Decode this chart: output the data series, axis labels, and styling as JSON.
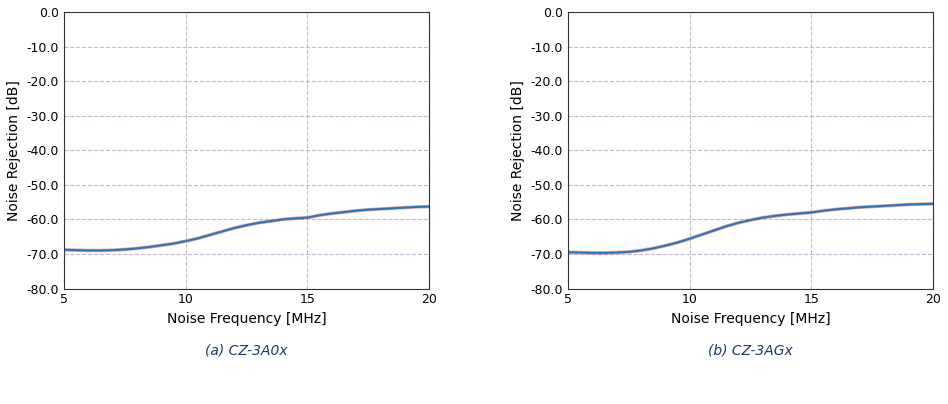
{
  "subplot_a": {
    "x": [
      5,
      5.5,
      6,
      6.5,
      7,
      7.5,
      8,
      8.5,
      9,
      9.5,
      10,
      10.5,
      11,
      11.5,
      12,
      12.5,
      13,
      13.5,
      14,
      14.5,
      15,
      15.5,
      16,
      16.5,
      17,
      17.5,
      18,
      18.5,
      19,
      19.5,
      20
    ],
    "y": [
      -68.8,
      -68.9,
      -69.0,
      -69.0,
      -68.9,
      -68.7,
      -68.4,
      -68.0,
      -67.5,
      -67.0,
      -66.3,
      -65.5,
      -64.5,
      -63.5,
      -62.5,
      -61.7,
      -61.0,
      -60.5,
      -60.0,
      -59.7,
      -59.5,
      -58.8,
      -58.3,
      -57.9,
      -57.5,
      -57.2,
      -57.0,
      -56.8,
      -56.6,
      -56.4,
      -56.3
    ],
    "label": "(a) CZ-3A0x"
  },
  "subplot_b": {
    "x": [
      5,
      5.5,
      6,
      6.5,
      7,
      7.5,
      8,
      8.5,
      9,
      9.5,
      10,
      10.5,
      11,
      11.5,
      12,
      12.5,
      13,
      13.5,
      14,
      14.5,
      15,
      15.5,
      16,
      16.5,
      17,
      17.5,
      18,
      18.5,
      19,
      19.5,
      20
    ],
    "y": [
      -69.5,
      -69.6,
      -69.7,
      -69.7,
      -69.6,
      -69.4,
      -69.0,
      -68.4,
      -67.6,
      -66.7,
      -65.6,
      -64.4,
      -63.2,
      -62.0,
      -61.0,
      -60.2,
      -59.5,
      -59.0,
      -58.6,
      -58.3,
      -58.0,
      -57.5,
      -57.1,
      -56.8,
      -56.5,
      -56.3,
      -56.1,
      -55.9,
      -55.7,
      -55.6,
      -55.5
    ],
    "label": "(b) CZ-3AGx"
  },
  "ylabel": "Noise Rejection [dB]",
  "xlabel": "Noise Frequency [MHz]",
  "ylim": [
    -80,
    0
  ],
  "xlim": [
    5,
    20
  ],
  "yticks": [
    0,
    -10,
    -20,
    -30,
    -40,
    -50,
    -60,
    -70,
    -80
  ],
  "xticks": [
    5,
    10,
    15,
    20
  ],
  "ytick_labels": [
    "0.0",
    "-10.0",
    "-20.0",
    "-30.0",
    "-40.0",
    "-50.0",
    "-60.0",
    "-70.0",
    "-80.0"
  ],
  "xtick_labels": [
    "5",
    "10",
    "15",
    "20"
  ],
  "line_color": "#2E75B6",
  "line_color2": "#C0504D",
  "hgrid_color": "#C8B8D8",
  "vgrid_color": "#B8C8B8",
  "grid_linestyle": "--",
  "caption_color": "#1F3864",
  "background_color": "#FFFFFF",
  "fig_width": 9.48,
  "fig_height": 4.04,
  "dpi": 100,
  "tick_fontsize": 9,
  "label_fontsize": 10,
  "caption_fontsize": 10
}
